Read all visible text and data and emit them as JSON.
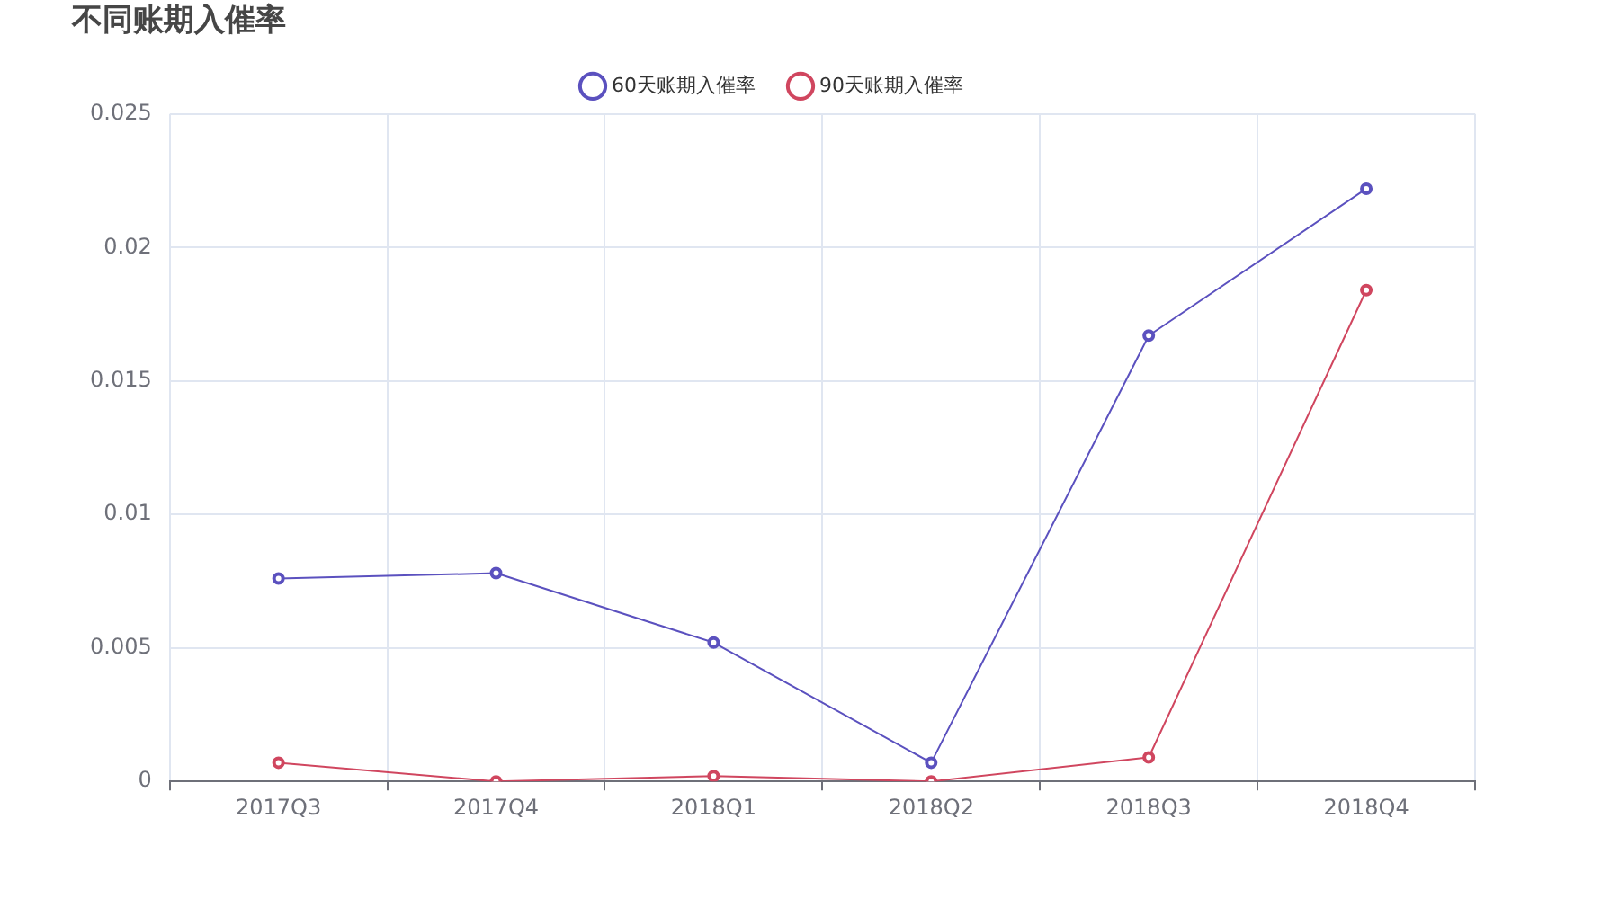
{
  "chart_data": {
    "type": "line",
    "title": "不同账期入催率",
    "categories": [
      "2017Q3",
      "2017Q4",
      "2018Q1",
      "2018Q2",
      "2018Q3",
      "2018Q4"
    ],
    "series": [
      {
        "name": "60天账期入催率",
        "color": "#5b51bf",
        "values": [
          0.0076,
          0.0078,
          0.0052,
          0.0007,
          0.0167,
          0.0222
        ]
      },
      {
        "name": "90天账期入催率",
        "color": "#d0465f",
        "values": [
          0.0007,
          0,
          0.0002,
          0,
          0.0009,
          0.0184
        ]
      }
    ],
    "ylim": [
      0,
      0.025
    ],
    "yticks": [
      0,
      0.005,
      0.01,
      0.015,
      0.02,
      0.025
    ],
    "grid": true,
    "legend": "top",
    "marker": "circle",
    "line_style": "solid"
  }
}
